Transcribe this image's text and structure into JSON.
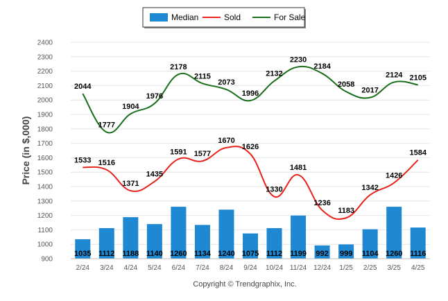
{
  "chart_data": {
    "type": "bar",
    "categories": [
      "2/24",
      "3/24",
      "4/24",
      "5/24",
      "6/24",
      "7/24",
      "8/24",
      "9/24",
      "10/24",
      "11/24",
      "12/24",
      "1/25",
      "2/25",
      "3/25",
      "4/25"
    ],
    "series": [
      {
        "name": "Median",
        "type": "bar",
        "color": "#1e88d2",
        "values": [
          1035,
          1112,
          1188,
          1140,
          1260,
          1134,
          1240,
          1075,
          1112,
          1199,
          992,
          999,
          1104,
          1260,
          1116
        ]
      },
      {
        "name": "Sold",
        "type": "line",
        "color": "#e8221c",
        "values": [
          1533,
          1516,
          1371,
          1435,
          1591,
          1577,
          1670,
          1626,
          1330,
          1481,
          1236,
          1183,
          1342,
          1426,
          1584
        ]
      },
      {
        "name": "For Sale",
        "type": "line",
        "color": "#1a6e1a",
        "values": [
          2044,
          1777,
          1904,
          1976,
          2178,
          2115,
          2073,
          1996,
          2132,
          2230,
          2184,
          2058,
          2017,
          2124,
          2105
        ]
      }
    ],
    "ylabel": "Price (in $,000)",
    "xlabel": "",
    "title": "",
    "ylim": [
      900,
      2400
    ],
    "yticks": [
      900,
      1000,
      1100,
      1200,
      1300,
      1400,
      1500,
      1600,
      1700,
      1800,
      1900,
      2000,
      2100,
      2200,
      2300,
      2400
    ],
    "grid": true,
    "legend_position": "top-center"
  },
  "footer": "Copyright © Trendgraphix, Inc."
}
